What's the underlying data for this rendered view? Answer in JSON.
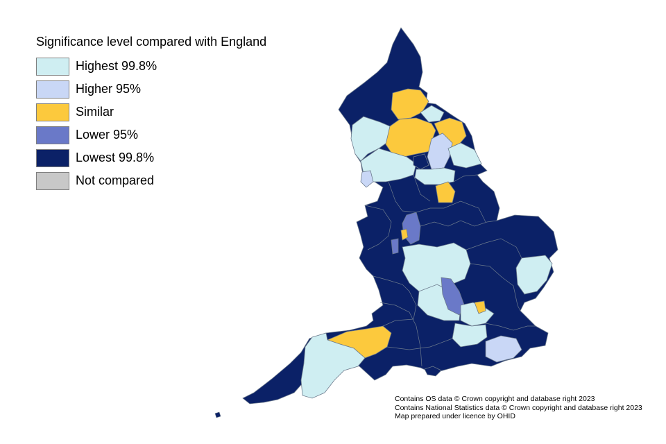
{
  "legend": {
    "title": "Significance level compared with England",
    "items": [
      {
        "label": "Highest 99.8%",
        "color": "#cfeef2",
        "key": "highest"
      },
      {
        "label": "Higher 95%",
        "color": "#c9d7f6",
        "key": "higher"
      },
      {
        "label": "Similar",
        "color": "#fcc93d",
        "key": "similar"
      },
      {
        "label": "Lower 95%",
        "color": "#6a79c8",
        "key": "lower"
      },
      {
        "label": "Lowest 99.8%",
        "color": "#0b2167",
        "key": "lowest"
      },
      {
        "label": "Not compared",
        "color": "#c8c8c8",
        "key": "not_compared"
      }
    ]
  },
  "map": {
    "boundary_color": "#6c7a8c"
  },
  "credits": {
    "line1": "Contains OS data © Crown copyright and database right 2023",
    "line2": "Contains National Statistics data © Crown copyright and database right 2023",
    "line3": "Map prepared under licence by OHID"
  }
}
